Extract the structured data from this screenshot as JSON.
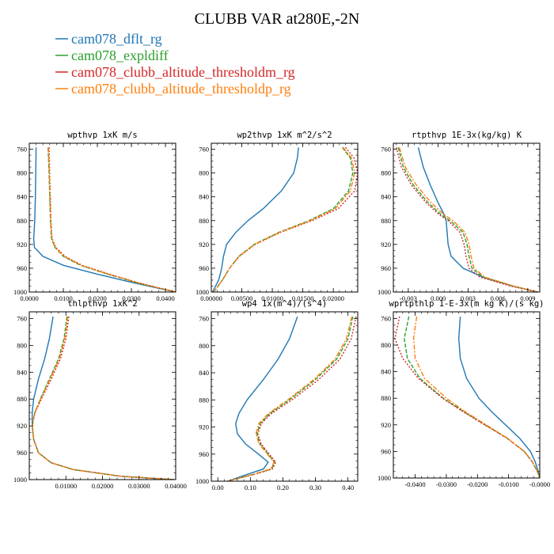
{
  "page_title": "CLUBB VAR at280E,-2N",
  "series_styles": [
    {
      "name": "cam078_dflt_rg",
      "color": "#1f77b4",
      "dash": ""
    },
    {
      "name": "cam078_expldiff",
      "color": "#2ca02c",
      "dash": "5,2"
    },
    {
      "name": "cam078_clubb_altitude_thresholdm_rg",
      "color": "#d62728",
      "dash": "2,2"
    },
    {
      "name": "cam078_clubb_altitude_thresholdp_rg",
      "color": "#ff7f0e",
      "dash": "6,2,2,2"
    }
  ],
  "chart_data": [
    {
      "type": "line",
      "title": "wpthvp  1xK m/s",
      "xlim": [
        0,
        0.043
      ],
      "ylim": [
        1000,
        750
      ],
      "y_reversed": true,
      "xticks": [
        0,
        0.01,
        0.02,
        0.03,
        0.04
      ],
      "xtick_labels": [
        "0.0000",
        "0.0100",
        "0.0200",
        "0.0300",
        "0.0400"
      ],
      "yticks": [
        760,
        800,
        840,
        880,
        920,
        960,
        1000
      ],
      "ytick_labels": [
        "760",
        "800",
        "840",
        "880",
        "920",
        "960",
        "1000"
      ],
      "y": [
        757,
        800,
        840,
        880,
        910,
        925,
        940,
        955,
        970,
        985,
        1000
      ],
      "series": [
        {
          "name": "cam078_dflt_rg",
          "x": [
            0.002,
            0.0019,
            0.0018,
            0.0016,
            0.0013,
            0.0015,
            0.004,
            0.01,
            0.02,
            0.031,
            0.043
          ]
        },
        {
          "name": "cam078_expldiff",
          "x": [
            0.0055,
            0.0058,
            0.006,
            0.0062,
            0.0065,
            0.0075,
            0.01,
            0.015,
            0.023,
            0.032,
            0.043
          ]
        },
        {
          "name": "cam078_clubb_altitude_thresholdm_rg",
          "x": [
            0.0058,
            0.006,
            0.0062,
            0.0064,
            0.0067,
            0.0078,
            0.0105,
            0.0155,
            0.0235,
            0.0325,
            0.043
          ]
        },
        {
          "name": "cam078_clubb_altitude_thresholdp_rg",
          "x": [
            0.0056,
            0.0059,
            0.0061,
            0.0063,
            0.0066,
            0.0076,
            0.0102,
            0.0152,
            0.0232,
            0.0322,
            0.043
          ]
        }
      ]
    },
    {
      "type": "line",
      "title": "wp2thvp  1xK m^2/s^2",
      "xlim": [
        0,
        0.024
      ],
      "ylim": [
        1000,
        750
      ],
      "y_reversed": true,
      "xticks": [
        0,
        0.005,
        0.01,
        0.015,
        0.02
      ],
      "xtick_labels": [
        "0.00000",
        "0.00500",
        "0.01000",
        "0.01500",
        "0.02000"
      ],
      "yticks": [
        760,
        800,
        840,
        880,
        920,
        960,
        1000
      ],
      "ytick_labels": [
        "760",
        "800",
        "840",
        "880",
        "920",
        "960",
        "1000"
      ],
      "y": [
        757,
        775,
        800,
        830,
        860,
        880,
        900,
        920,
        940,
        960,
        980,
        1000
      ],
      "series": [
        {
          "name": "cam078_dflt_rg",
          "x": [
            0.0143,
            0.0141,
            0.0135,
            0.0115,
            0.0085,
            0.006,
            0.004,
            0.0025,
            0.002,
            0.0017,
            0.0012,
            0.0002
          ]
        },
        {
          "name": "cam078_expldiff",
          "x": [
            0.0215,
            0.0228,
            0.0232,
            0.0225,
            0.02,
            0.016,
            0.011,
            0.007,
            0.0045,
            0.003,
            0.0018,
            0.0004
          ]
        },
        {
          "name": "cam078_clubb_altitude_thresholdm_rg",
          "x": [
            0.022,
            0.0234,
            0.024,
            0.0235,
            0.0208,
            0.0165,
            0.0113,
            0.0072,
            0.0046,
            0.003,
            0.0018,
            0.0004
          ]
        },
        {
          "name": "cam078_clubb_altitude_thresholdp_rg",
          "x": [
            0.0216,
            0.023,
            0.0235,
            0.0228,
            0.0203,
            0.0162,
            0.0111,
            0.0071,
            0.0045,
            0.003,
            0.0018,
            0.0004
          ]
        }
      ]
    },
    {
      "type": "line",
      "title": "rtpthvp  1E-3x(kg/kg) K",
      "xlim": [
        -0.0045,
        0.0102
      ],
      "ylim": [
        1000,
        750
      ],
      "y_reversed": true,
      "xticks": [
        -0.003,
        0,
        0.003,
        0.006,
        0.009
      ],
      "xtick_labels": [
        "-0.003",
        "0.000",
        "0.003",
        "0.006",
        "0.009"
      ],
      "yticks": [
        760,
        800,
        840,
        880,
        920,
        960,
        1000
      ],
      "ytick_labels": [
        "760",
        "800",
        "840",
        "880",
        "920",
        "960",
        "1000"
      ],
      "y": [
        757,
        790,
        820,
        850,
        870,
        880,
        900,
        920,
        940,
        960,
        975,
        990,
        1000
      ],
      "series": [
        {
          "name": "cam078_dflt_rg",
          "x": [
            -0.002,
            -0.0015,
            -0.0008,
            0.0,
            0.0006,
            0.0008,
            0.0009,
            0.001,
            0.0013,
            0.0025,
            0.0045,
            0.0075,
            0.01
          ]
        },
        {
          "name": "cam078_expldiff",
          "x": [
            -0.004,
            -0.0035,
            -0.0025,
            -0.001,
            0.0003,
            0.0012,
            0.0025,
            0.0029,
            0.0031,
            0.0034,
            0.0045,
            0.0075,
            0.01
          ]
        },
        {
          "name": "cam078_clubb_altitude_thresholdm_rg",
          "x": [
            -0.0042,
            -0.0037,
            -0.0027,
            -0.0012,
            0.0001,
            0.001,
            0.0022,
            0.0026,
            0.0028,
            0.0031,
            0.0042,
            0.0073,
            0.01
          ]
        },
        {
          "name": "cam078_clubb_altitude_thresholdp_rg",
          "x": [
            -0.0039,
            -0.0033,
            -0.0022,
            -0.0007,
            0.0006,
            0.0015,
            0.0027,
            0.0031,
            0.0033,
            0.0036,
            0.0047,
            0.0076,
            0.01
          ]
        }
      ]
    },
    {
      "type": "line",
      "title": "thlpthvp  1xK^2",
      "xlim": [
        0,
        0.04
      ],
      "ylim": [
        1000,
        750
      ],
      "y_reversed": true,
      "xticks": [
        0.01,
        0.02,
        0.03,
        0.04
      ],
      "xtick_labels": [
        "0.01000",
        "0.02000",
        "0.03000",
        "0.04000"
      ],
      "yticks": [
        760,
        800,
        840,
        880,
        920,
        960,
        1000
      ],
      "ytick_labels": [
        "760",
        "800",
        "840",
        "880",
        "920",
        "960",
        "1000"
      ],
      "y": [
        757,
        790,
        820,
        850,
        880,
        900,
        920,
        940,
        960,
        975,
        985,
        995,
        1000
      ],
      "series": [
        {
          "name": "cam078_dflt_rg",
          "x": [
            0.0065,
            0.0055,
            0.0042,
            0.0025,
            0.0012,
            0.0008,
            0.0008,
            0.0012,
            0.0025,
            0.006,
            0.012,
            0.025,
            0.0395
          ]
        },
        {
          "name": "cam078_expldiff",
          "x": [
            0.0103,
            0.0095,
            0.008,
            0.0055,
            0.003,
            0.0015,
            0.0008,
            0.0012,
            0.0025,
            0.006,
            0.012,
            0.025,
            0.0395
          ]
        },
        {
          "name": "cam078_clubb_altitude_thresholdm_rg",
          "x": [
            0.0108,
            0.01,
            0.0085,
            0.006,
            0.0033,
            0.0016,
            0.0008,
            0.0012,
            0.0025,
            0.006,
            0.012,
            0.025,
            0.0395
          ]
        },
        {
          "name": "cam078_clubb_altitude_thresholdp_rg",
          "x": [
            0.0105,
            0.0097,
            0.0082,
            0.0057,
            0.0031,
            0.0015,
            0.0008,
            0.0012,
            0.0025,
            0.006,
            0.012,
            0.025,
            0.0395
          ]
        }
      ]
    },
    {
      "type": "line",
      "title": "wp4  1x(m^4)/(s^4)",
      "xlim": [
        -0.02,
        0.43
      ],
      "ylim": [
        1000,
        750
      ],
      "y_reversed": true,
      "xticks": [
        0,
        0.1,
        0.2,
        0.3,
        0.4
      ],
      "xtick_labels": [
        "0.00",
        "0.10",
        "0.20",
        "0.30",
        "0.40"
      ],
      "yticks": [
        760,
        800,
        840,
        880,
        920,
        960,
        1000
      ],
      "ytick_labels": [
        "760",
        "800",
        "840",
        "880",
        "920",
        "960",
        "1000"
      ],
      "y": [
        757,
        790,
        820,
        850,
        880,
        900,
        915,
        930,
        945,
        960,
        972,
        982,
        990,
        1000
      ],
      "series": [
        {
          "name": "cam078_dflt_rg",
          "x": [
            0.245,
            0.22,
            0.185,
            0.14,
            0.09,
            0.065,
            0.055,
            0.06,
            0.085,
            0.125,
            0.155,
            0.14,
            0.09,
            0.03
          ]
        },
        {
          "name": "cam078_expldiff",
          "x": [
            0.415,
            0.4,
            0.365,
            0.3,
            0.22,
            0.16,
            0.13,
            0.12,
            0.13,
            0.155,
            0.175,
            0.165,
            0.11,
            0.03
          ]
        },
        {
          "name": "cam078_clubb_altitude_thresholdm_rg",
          "x": [
            0.425,
            0.41,
            0.375,
            0.31,
            0.228,
            0.165,
            0.134,
            0.123,
            0.133,
            0.158,
            0.178,
            0.168,
            0.112,
            0.03
          ]
        },
        {
          "name": "cam078_clubb_altitude_thresholdp_rg",
          "x": [
            0.412,
            0.395,
            0.36,
            0.295,
            0.215,
            0.156,
            0.126,
            0.117,
            0.127,
            0.152,
            0.173,
            0.162,
            0.108,
            0.03
          ]
        }
      ]
    },
    {
      "type": "line",
      "title": "wprtpthlp  1-E-3x(m kg K)/(s kg)",
      "xlim": [
        -0.047,
        0
      ],
      "ylim": [
        1000,
        750
      ],
      "y_reversed": true,
      "xticks": [
        -0.04,
        -0.03,
        -0.02,
        -0.01,
        0
      ],
      "xtick_labels": [
        "-0.0400",
        "-0.0300",
        "-0.0200",
        "-0.0100",
        "-0.0000"
      ],
      "yticks": [
        760,
        800,
        840,
        880,
        920,
        960,
        1000
      ],
      "ytick_labels": [
        "760",
        "800",
        "840",
        "880",
        "920",
        "960",
        "1000"
      ],
      "y": [
        757,
        790,
        820,
        850,
        880,
        900,
        920,
        940,
        960,
        975,
        990,
        1000
      ],
      "series": [
        {
          "name": "cam078_dflt_rg",
          "x": [
            -0.0255,
            -0.026,
            -0.0255,
            -0.0235,
            -0.0195,
            -0.0155,
            -0.011,
            -0.0065,
            -0.003,
            -0.0015,
            -0.0005,
            0.0
          ]
        },
        {
          "name": "cam078_expldiff",
          "x": [
            -0.042,
            -0.0435,
            -0.0425,
            -0.0385,
            -0.031,
            -0.0245,
            -0.0175,
            -0.0105,
            -0.005,
            -0.0025,
            -0.0008,
            0.0
          ]
        },
        {
          "name": "cam078_clubb_altitude_thresholdm_rg",
          "x": [
            -0.045,
            -0.0465,
            -0.044,
            -0.039,
            -0.0312,
            -0.0247,
            -0.0177,
            -0.0106,
            -0.005,
            -0.0025,
            -0.0008,
            0.0
          ]
        },
        {
          "name": "cam078_clubb_altitude_thresholdp_rg",
          "x": [
            -0.0395,
            -0.0405,
            -0.04,
            -0.037,
            -0.03,
            -0.024,
            -0.0172,
            -0.0104,
            -0.0049,
            -0.0024,
            -0.0008,
            0.0
          ]
        }
      ]
    }
  ]
}
